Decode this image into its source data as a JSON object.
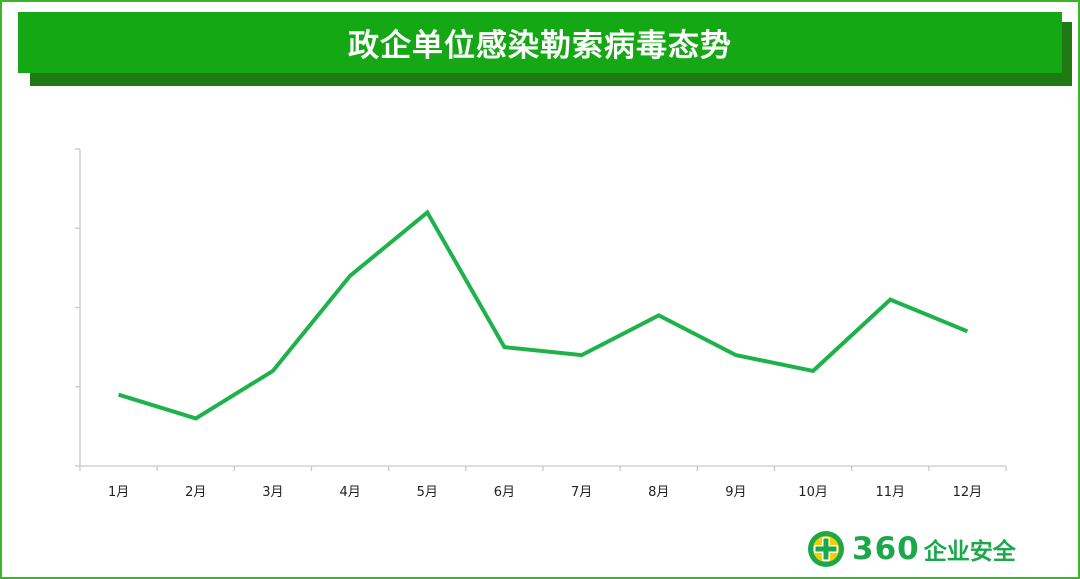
{
  "header": {
    "title": "政企单位感染勒索病毒态势"
  },
  "chart_data": {
    "type": "line",
    "title": "政企单位感染勒索病毒态势",
    "xlabel": "",
    "ylabel": "",
    "categories": [
      "1月",
      "2月",
      "3月",
      "4月",
      "5月",
      "6月",
      "7月",
      "8月",
      "9月",
      "10月",
      "11月",
      "12月"
    ],
    "series": [
      {
        "values": [
          0.9,
          0.6,
          1.2,
          2.4,
          3.2,
          1.5,
          1.4,
          1.9,
          1.4,
          1.2,
          2.1,
          1.7
        ]
      }
    ],
    "ylim": [
      0,
      4
    ],
    "y_ticks_labeled": false,
    "grid": false,
    "legend": "none",
    "colors": {
      "line": "#1db34a",
      "axis": "#c9c9c9"
    }
  },
  "logo": {
    "brand": "360",
    "text": "企业安全",
    "colors": {
      "green": "#1aa84a",
      "yellow": "#f4d000"
    }
  },
  "colors": {
    "border": "#3cb527",
    "banner": "#14a814",
    "banner_shadow": "#1f7a14"
  }
}
